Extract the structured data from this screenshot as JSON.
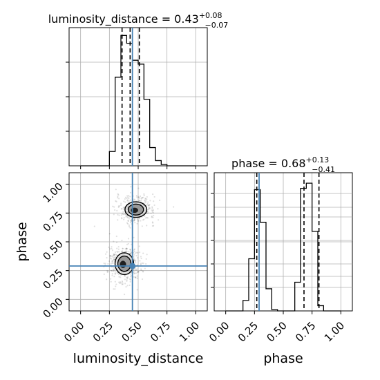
{
  "chart_data": [
    {
      "type": "histogram",
      "panel": "luminosity_distance marginal",
      "title": {
        "base": "luminosity_distance = 0.43",
        "sup": "+0.08",
        "sub": "−0.07"
      },
      "xlim": [
        -0.1,
        1.1
      ],
      "ylim": [
        0,
        1.0
      ],
      "bin_edges": [
        0.0,
        0.05,
        0.1,
        0.15,
        0.2,
        0.25,
        0.3,
        0.35,
        0.4,
        0.45,
        0.5,
        0.55,
        0.6,
        0.65,
        0.7,
        0.75,
        0.8,
        0.85,
        0.9,
        0.95,
        1.0
      ],
      "counts": [
        0,
        0,
        0,
        0,
        0,
        0.11,
        0.68,
        1.0,
        0.94,
        0.81,
        0.78,
        0.51,
        0.14,
        0.04,
        0.01,
        0,
        0,
        0,
        0,
        0
      ],
      "quantile_lines": [
        0.36,
        0.43,
        0.51
      ],
      "truth": 0.45,
      "x_ticks_hidden": true
    },
    {
      "type": "contour",
      "panel": "joint luminosity_distance vs phase",
      "xlabel": "luminosity_distance",
      "ylabel": "phase",
      "xlim": [
        -0.1,
        1.1
      ],
      "ylim": [
        -0.1,
        1.1
      ],
      "xticks": [
        "0.00",
        "0.25",
        "0.50",
        "0.75",
        "1.00"
      ],
      "yticks": [
        "0.00",
        "0.25",
        "0.50",
        "0.75",
        "1.00"
      ],
      "modes": [
        {
          "center": [
            0.48,
            0.78
          ],
          "spread": [
            0.07,
            0.05
          ]
        },
        {
          "center": [
            0.38,
            0.31
          ],
          "spread": [
            0.06,
            0.07
          ]
        }
      ],
      "truth": [
        0.45,
        0.29
      ]
    },
    {
      "type": "histogram",
      "panel": "phase marginal",
      "title": {
        "base": "phase = 0.68",
        "sup": "+0.13",
        "sub": "−0.41"
      },
      "xlabel": "phase",
      "xlim": [
        -0.1,
        1.1
      ],
      "ylim": [
        0,
        1.0
      ],
      "xticks": [
        "0.00",
        "0.25",
        "0.50",
        "0.75",
        "1.00"
      ],
      "bin_edges": [
        0.0,
        0.05,
        0.1,
        0.15,
        0.2,
        0.25,
        0.3,
        0.35,
        0.4,
        0.45,
        0.5,
        0.55,
        0.6,
        0.65,
        0.7,
        0.75,
        0.8,
        0.85,
        0.9,
        0.95,
        1.0
      ],
      "counts": [
        0,
        0,
        0,
        0.08,
        0.4,
        0.93,
        0.68,
        0.17,
        0.01,
        0,
        0,
        0,
        0.22,
        0.94,
        0.98,
        0.61,
        0.04,
        0,
        0,
        0
      ],
      "quantile_lines": [
        0.27,
        0.68,
        0.81
      ],
      "truth": 0.29
    }
  ]
}
